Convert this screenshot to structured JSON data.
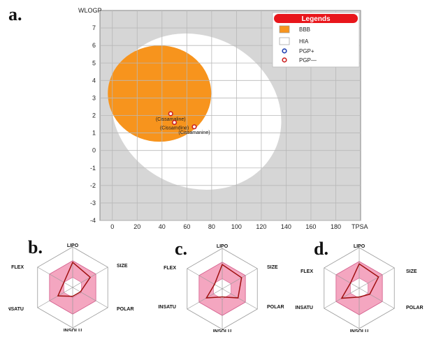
{
  "panels": {
    "a": "a.",
    "b": "b.",
    "c": "c.",
    "d": "d."
  },
  "chart_data": [
    {
      "type": "scatter",
      "panel": "a.",
      "xlabel": "TPSA",
      "ylabel": "WLOGP",
      "xlim": [
        -10,
        200
      ],
      "ylim": [
        -4,
        8
      ],
      "x_ticks": [
        0,
        20,
        40,
        60,
        80,
        100,
        120,
        140,
        160,
        180
      ],
      "y_ticks": [
        -4,
        -3,
        -2,
        -1,
        0,
        1,
        2,
        3,
        4,
        5,
        6,
        7
      ],
      "grid": true,
      "legend": {
        "title": "Legends",
        "position": "top-right",
        "entries": [
          {
            "label": "BBB",
            "color": "#f7941d"
          },
          {
            "label": "HIA",
            "color": "#ffffff"
          },
          {
            "label": "PGP+",
            "color": "#1f3fb0"
          },
          {
            "label": "PGP—",
            "color": "#cc1f1f"
          }
        ]
      },
      "colors": {
        "background": "#d6d6d6",
        "bbb": "#f7941d",
        "hia": "#ffffff",
        "pgp_minus": "#cc1f1f",
        "legend_title_bg": "#e8161b"
      },
      "series": [
        {
          "name": "PGP—",
          "points": [
            {
              "label": "(Cissamaline)",
              "x": 47,
              "y": 2.1
            },
            {
              "label": "(Cissamdine)",
              "x": 50,
              "y": 1.6
            },
            {
              "label": "(Cissamanine)",
              "x": 66,
              "y": 1.35
            }
          ]
        }
      ]
    },
    {
      "type": "radar",
      "panel": "b.",
      "axes": [
        "LIPO",
        "SIZE",
        "POLAR",
        "INSOLU",
        "INSATU",
        "FLEX"
      ],
      "values": [
        0.62,
        0.5,
        0.22,
        0.22,
        0.42,
        0.25
      ],
      "optimal_range": {
        "lower": 0.25,
        "upper": 0.66
      },
      "colors": {
        "range": "#f4a6c0",
        "line": "#a01010"
      }
    },
    {
      "type": "radar",
      "panel": "c.",
      "axes": [
        "LIPO",
        "SIZE",
        "POLAR",
        "INSOLU",
        "INSATU",
        "FLEX"
      ],
      "values": [
        0.6,
        0.55,
        0.45,
        0.2,
        0.45,
        0.22
      ],
      "optimal_range": {
        "lower": 0.25,
        "upper": 0.66
      },
      "colors": {
        "range": "#f4a6c0",
        "line": "#a01010"
      }
    },
    {
      "type": "radar",
      "panel": "d.",
      "axes": [
        "LIPO",
        "SIZE",
        "POLAR",
        "INSOLU",
        "INSATU",
        "FLEX"
      ],
      "values": [
        0.6,
        0.55,
        0.3,
        0.22,
        0.5,
        0.25
      ],
      "optimal_range": {
        "lower": 0.25,
        "upper": 0.66
      },
      "colors": {
        "range": "#f4a6c0",
        "line": "#a01010"
      }
    }
  ]
}
